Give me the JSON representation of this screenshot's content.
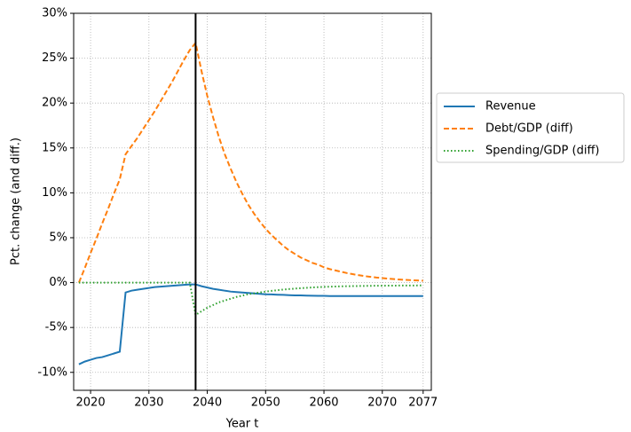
{
  "chart_data": {
    "type": "line",
    "xlabel": "Year t",
    "ylabel": "Pct. change (and diff.)",
    "x": [
      2018,
      2019,
      2020,
      2021,
      2022,
      2023,
      2024,
      2025,
      2026,
      2027,
      2028,
      2029,
      2030,
      2031,
      2032,
      2033,
      2034,
      2035,
      2036,
      2037,
      2038,
      2039,
      2040,
      2041,
      2042,
      2043,
      2044,
      2045,
      2046,
      2047,
      2048,
      2049,
      2050,
      2051,
      2052,
      2053,
      2054,
      2055,
      2056,
      2057,
      2058,
      2059,
      2060,
      2061,
      2062,
      2063,
      2064,
      2065,
      2066,
      2067,
      2068,
      2069,
      2070,
      2071,
      2072,
      2073,
      2074,
      2075,
      2076,
      2077
    ],
    "series": [
      {
        "name": "Revenue",
        "color": "#1f77b4",
        "style": "solid",
        "values": [
          -9.1,
          -8.8,
          -8.6,
          -8.4,
          -8.3,
          -8.1,
          -7.9,
          -7.7,
          -1.1,
          -0.9,
          -0.8,
          -0.7,
          -0.6,
          -0.5,
          -0.45,
          -0.4,
          -0.35,
          -0.3,
          -0.25,
          -0.2,
          -0.2,
          -0.4,
          -0.55,
          -0.7,
          -0.8,
          -0.9,
          -1.0,
          -1.05,
          -1.1,
          -1.15,
          -1.2,
          -1.25,
          -1.3,
          -1.32,
          -1.35,
          -1.37,
          -1.4,
          -1.42,
          -1.43,
          -1.45,
          -1.46,
          -1.47,
          -1.48,
          -1.5,
          -1.5,
          -1.5,
          -1.5,
          -1.5,
          -1.5,
          -1.5,
          -1.5,
          -1.5,
          -1.5,
          -1.5,
          -1.5,
          -1.5,
          -1.5,
          -1.5,
          -1.5,
          -1.5
        ]
      },
      {
        "name": "Debt/GDP (diff)",
        "color": "#ff7f0e",
        "style": "dashed",
        "values": [
          0,
          1.6,
          3.3,
          4.9,
          6.6,
          8.2,
          9.9,
          11.5,
          14.3,
          15.2,
          16.1,
          17.1,
          18.1,
          19.1,
          20.2,
          21.3,
          22.4,
          23.6,
          24.8,
          25.9,
          26.7,
          23.6,
          20.8,
          18.4,
          16.2,
          14.3,
          12.7,
          11.2,
          9.9,
          8.7,
          7.7,
          6.8,
          6.0,
          5.3,
          4.7,
          4.1,
          3.6,
          3.2,
          2.8,
          2.5,
          2.2,
          2.0,
          1.7,
          1.5,
          1.35,
          1.2,
          1.05,
          0.93,
          0.82,
          0.72,
          0.64,
          0.56,
          0.5,
          0.44,
          0.39,
          0.34,
          0.3,
          0.27,
          0.24,
          0.21
        ]
      },
      {
        "name": "Spending/GDP (diff)",
        "color": "#2ca02c",
        "style": "dotted",
        "values": [
          0,
          0,
          0,
          0,
          0,
          0,
          0,
          0,
          0,
          0,
          0,
          0,
          0,
          0,
          0,
          0,
          0,
          0,
          0,
          0,
          -3.6,
          -3.2,
          -2.8,
          -2.5,
          -2.2,
          -2.0,
          -1.8,
          -1.6,
          -1.45,
          -1.3,
          -1.2,
          -1.1,
          -1.0,
          -0.92,
          -0.85,
          -0.78,
          -0.72,
          -0.67,
          -0.62,
          -0.58,
          -0.54,
          -0.51,
          -0.48,
          -0.46,
          -0.44,
          -0.42,
          -0.4,
          -0.39,
          -0.38,
          -0.37,
          -0.36,
          -0.35,
          -0.35,
          -0.34,
          -0.34,
          -0.33,
          -0.33,
          -0.33,
          -0.32,
          -0.32
        ]
      }
    ],
    "vline": 2038,
    "xlim": [
      2017.1,
      2078.4
    ],
    "xticks": [
      2020,
      2030,
      2040,
      2050,
      2060,
      2070,
      2077
    ],
    "ylim": [
      -12,
      30
    ],
    "yticks": [
      {
        "value": -10,
        "label": "-10%"
      },
      {
        "value": -5,
        "label": "-5%"
      },
      {
        "value": 0,
        "label": "0%"
      },
      {
        "value": 5,
        "label": "5%"
      },
      {
        "value": 10,
        "label": "10%"
      },
      {
        "value": 15,
        "label": "15%"
      },
      {
        "value": 20,
        "label": "20%"
      },
      {
        "value": 25,
        "label": "25%"
      },
      {
        "value": 30,
        "label": "30%"
      }
    ],
    "grid": true,
    "legend": "outside-right"
  }
}
